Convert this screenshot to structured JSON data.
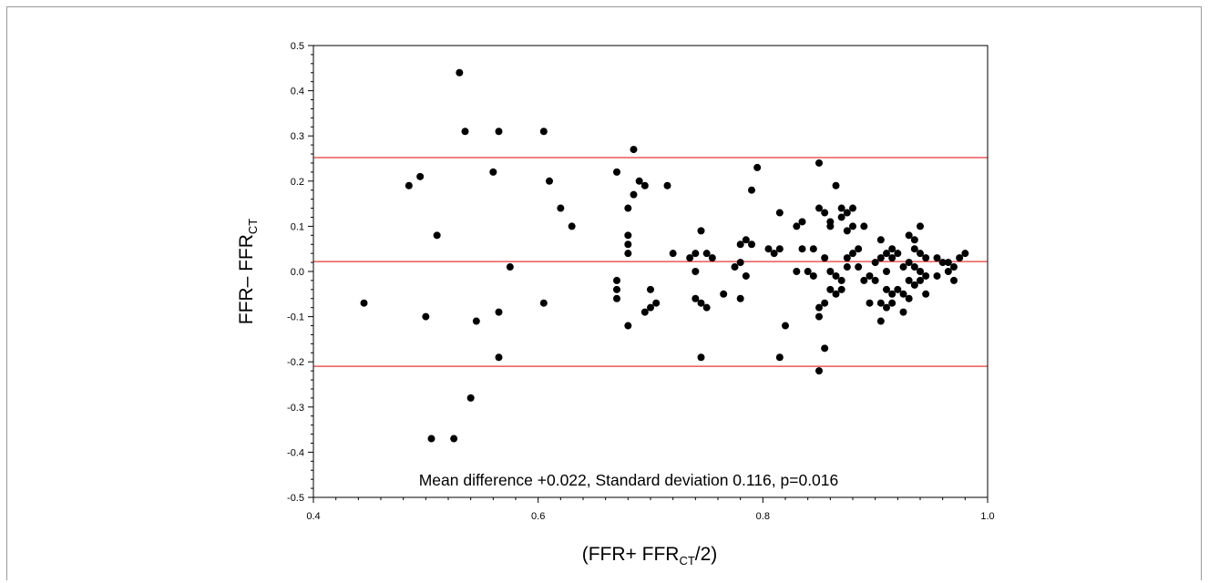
{
  "chart_data": {
    "type": "scatter",
    "xlabel": {
      "pre": "(FFR+ FFR",
      "sub": "CT",
      "post": "/2)"
    },
    "ylabel": {
      "pre": "FFR– FFR",
      "sub": "CT"
    },
    "xlim": [
      0.4,
      1.0
    ],
    "ylim": [
      -0.5,
      0.5
    ],
    "x_ticks": [
      "0.4",
      "0.6",
      "0.8",
      "1.0"
    ],
    "y_ticks": [
      "0.5",
      "0.4",
      "0.3",
      "0.2",
      "0.1",
      "0.0",
      "-0.1",
      "-0.2",
      "-0.3",
      "-0.4",
      "-0.5"
    ],
    "grid": false,
    "reference_lines": [
      0.252,
      0.022,
      -0.21
    ],
    "annotation": "Mean difference +0.022, Standard deviation 0.116, p=0.016",
    "colors": {
      "points": "#000000",
      "reference_lines": "#e53935",
      "axes": "#000000"
    },
    "points": [
      [
        0.445,
        -0.07
      ],
      [
        0.485,
        0.19
      ],
      [
        0.495,
        0.21
      ],
      [
        0.5,
        -0.1
      ],
      [
        0.505,
        -0.37
      ],
      [
        0.51,
        0.08
      ],
      [
        0.525,
        -0.37
      ],
      [
        0.53,
        0.44
      ],
      [
        0.535,
        0.31
      ],
      [
        0.54,
        -0.28
      ],
      [
        0.545,
        -0.11
      ],
      [
        0.56,
        0.22
      ],
      [
        0.565,
        0.31
      ],
      [
        0.565,
        -0.09
      ],
      [
        0.565,
        -0.19
      ],
      [
        0.575,
        0.01
      ],
      [
        0.605,
        0.31
      ],
      [
        0.605,
        -0.07
      ],
      [
        0.61,
        0.2
      ],
      [
        0.62,
        0.14
      ],
      [
        0.63,
        0.1
      ],
      [
        0.67,
        0.22
      ],
      [
        0.67,
        -0.02
      ],
      [
        0.67,
        -0.04
      ],
      [
        0.67,
        -0.06
      ],
      [
        0.68,
        0.14
      ],
      [
        0.68,
        0.08
      ],
      [
        0.68,
        0.06
      ],
      [
        0.68,
        0.04
      ],
      [
        0.68,
        -0.12
      ],
      [
        0.685,
        0.27
      ],
      [
        0.685,
        0.17
      ],
      [
        0.69,
        0.2
      ],
      [
        0.695,
        0.19
      ],
      [
        0.695,
        -0.09
      ],
      [
        0.7,
        -0.04
      ],
      [
        0.7,
        -0.08
      ],
      [
        0.705,
        -0.07
      ],
      [
        0.715,
        0.19
      ],
      [
        0.72,
        0.04
      ],
      [
        0.735,
        0.03
      ],
      [
        0.74,
        0.04
      ],
      [
        0.74,
        0.0
      ],
      [
        0.74,
        -0.06
      ],
      [
        0.745,
        0.09
      ],
      [
        0.745,
        -0.07
      ],
      [
        0.745,
        -0.19
      ],
      [
        0.75,
        0.04
      ],
      [
        0.75,
        -0.08
      ],
      [
        0.755,
        0.03
      ],
      [
        0.765,
        -0.05
      ],
      [
        0.775,
        0.01
      ],
      [
        0.78,
        0.06
      ],
      [
        0.78,
        0.02
      ],
      [
        0.78,
        -0.06
      ],
      [
        0.785,
        0.07
      ],
      [
        0.785,
        -0.01
      ],
      [
        0.79,
        0.18
      ],
      [
        0.79,
        0.06
      ],
      [
        0.795,
        0.23
      ],
      [
        0.805,
        0.05
      ],
      [
        0.81,
        0.04
      ],
      [
        0.815,
        0.13
      ],
      [
        0.815,
        0.05
      ],
      [
        0.815,
        -0.19
      ],
      [
        0.82,
        -0.12
      ],
      [
        0.83,
        0.1
      ],
      [
        0.83,
        0.0
      ],
      [
        0.835,
        0.11
      ],
      [
        0.835,
        0.05
      ],
      [
        0.84,
        0.0
      ],
      [
        0.845,
        0.05
      ],
      [
        0.845,
        -0.01
      ],
      [
        0.85,
        0.24
      ],
      [
        0.85,
        0.14
      ],
      [
        0.85,
        -0.08
      ],
      [
        0.85,
        -0.1
      ],
      [
        0.85,
        -0.22
      ],
      [
        0.855,
        0.13
      ],
      [
        0.855,
        0.03
      ],
      [
        0.855,
        -0.07
      ],
      [
        0.855,
        -0.17
      ],
      [
        0.86,
        0.11
      ],
      [
        0.86,
        0.1
      ],
      [
        0.86,
        0.0
      ],
      [
        0.86,
        -0.04
      ],
      [
        0.865,
        0.19
      ],
      [
        0.865,
        -0.01
      ],
      [
        0.865,
        -0.05
      ],
      [
        0.87,
        0.14
      ],
      [
        0.87,
        0.12
      ],
      [
        0.87,
        -0.02
      ],
      [
        0.87,
        -0.04
      ],
      [
        0.875,
        0.13
      ],
      [
        0.875,
        0.09
      ],
      [
        0.875,
        0.03
      ],
      [
        0.875,
        0.01
      ],
      [
        0.88,
        0.14
      ],
      [
        0.88,
        0.1
      ],
      [
        0.88,
        0.04
      ],
      [
        0.885,
        0.05
      ],
      [
        0.885,
        0.01
      ],
      [
        0.89,
        0.1
      ],
      [
        0.89,
        -0.02
      ],
      [
        0.895,
        -0.01
      ],
      [
        0.895,
        -0.07
      ],
      [
        0.9,
        0.02
      ],
      [
        0.9,
        -0.02
      ],
      [
        0.905,
        0.07
      ],
      [
        0.905,
        0.03
      ],
      [
        0.905,
        -0.07
      ],
      [
        0.905,
        -0.11
      ],
      [
        0.91,
        0.04
      ],
      [
        0.91,
        0.0
      ],
      [
        0.91,
        -0.04
      ],
      [
        0.91,
        -0.08
      ],
      [
        0.915,
        0.05
      ],
      [
        0.915,
        0.03
      ],
      [
        0.915,
        -0.05
      ],
      [
        0.915,
        -0.07
      ],
      [
        0.92,
        0.04
      ],
      [
        0.92,
        -0.04
      ],
      [
        0.925,
        0.01
      ],
      [
        0.925,
        -0.05
      ],
      [
        0.925,
        -0.09
      ],
      [
        0.93,
        0.08
      ],
      [
        0.93,
        0.02
      ],
      [
        0.93,
        -0.02
      ],
      [
        0.93,
        -0.06
      ],
      [
        0.935,
        0.07
      ],
      [
        0.935,
        0.05
      ],
      [
        0.935,
        0.01
      ],
      [
        0.935,
        -0.03
      ],
      [
        0.94,
        0.1
      ],
      [
        0.94,
        0.04
      ],
      [
        0.94,
        0.0
      ],
      [
        0.94,
        -0.02
      ],
      [
        0.945,
        0.03
      ],
      [
        0.945,
        -0.01
      ],
      [
        0.945,
        -0.05
      ],
      [
        0.955,
        0.03
      ],
      [
        0.955,
        -0.01
      ],
      [
        0.96,
        0.02
      ],
      [
        0.965,
        0.02
      ],
      [
        0.965,
        0.0
      ],
      [
        0.97,
        0.01
      ],
      [
        0.97,
        -0.02
      ],
      [
        0.975,
        0.03
      ],
      [
        0.98,
        0.04
      ]
    ]
  }
}
